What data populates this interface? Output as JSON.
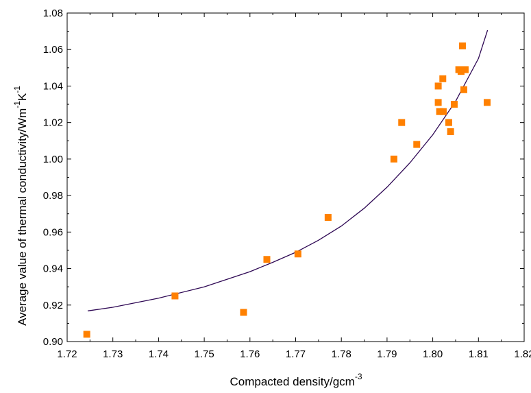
{
  "chart_data": {
    "type": "scatter",
    "title": "",
    "xlabel": "Compacted density/gcm",
    "xlabel_sup": "-3",
    "ylabel_parts": [
      "Average value of thermal conductivity/Wm",
      "-1",
      "K",
      "-1"
    ],
    "xlim": [
      1.72,
      1.82
    ],
    "ylim": [
      0.9,
      1.08
    ],
    "xticks": [
      "1.72",
      "1.73",
      "1.74",
      "1.75",
      "1.76",
      "1.77",
      "1.78",
      "1.79",
      "1.80",
      "1.81",
      "1.82"
    ],
    "yticks": [
      "0.90",
      "0.92",
      "0.94",
      "0.96",
      "0.98",
      "1.00",
      "1.02",
      "1.04",
      "1.06",
      "1.08"
    ],
    "grid": false,
    "legend": "none",
    "marker_color": "#ff8000",
    "curve_color": "#2e0854",
    "points": [
      {
        "x": 1.7243,
        "y": 0.904
      },
      {
        "x": 1.7436,
        "y": 0.925
      },
      {
        "x": 1.7586,
        "y": 0.916
      },
      {
        "x": 1.7637,
        "y": 0.945
      },
      {
        "x": 1.7705,
        "y": 0.948
      },
      {
        "x": 1.7771,
        "y": 0.968
      },
      {
        "x": 1.7915,
        "y": 1.0
      },
      {
        "x": 1.7932,
        "y": 1.02
      },
      {
        "x": 1.7965,
        "y": 1.008
      },
      {
        "x": 1.8012,
        "y": 1.04
      },
      {
        "x": 1.8012,
        "y": 1.031
      },
      {
        "x": 1.8015,
        "y": 1.026
      },
      {
        "x": 1.8022,
        "y": 1.044
      },
      {
        "x": 1.8023,
        "y": 1.026
      },
      {
        "x": 1.8035,
        "y": 1.02
      },
      {
        "x": 1.8039,
        "y": 1.015
      },
      {
        "x": 1.8047,
        "y": 1.03
      },
      {
        "x": 1.8057,
        "y": 1.049
      },
      {
        "x": 1.8062,
        "y": 1.048
      },
      {
        "x": 1.8065,
        "y": 1.062
      },
      {
        "x": 1.8068,
        "y": 1.038
      },
      {
        "x": 1.8071,
        "y": 1.049
      },
      {
        "x": 1.8119,
        "y": 1.031
      }
    ],
    "fit_curve": [
      {
        "x": 1.7245,
        "y": 0.9168
      },
      {
        "x": 1.73,
        "y": 0.9188
      },
      {
        "x": 1.74,
        "y": 0.9238
      },
      {
        "x": 1.75,
        "y": 0.93
      },
      {
        "x": 1.76,
        "y": 0.9383
      },
      {
        "x": 1.765,
        "y": 0.9434
      },
      {
        "x": 1.77,
        "y": 0.9489
      },
      {
        "x": 1.775,
        "y": 0.9555
      },
      {
        "x": 1.78,
        "y": 0.9633
      },
      {
        "x": 1.785,
        "y": 0.973
      },
      {
        "x": 1.79,
        "y": 0.9846
      },
      {
        "x": 1.795,
        "y": 0.9979
      },
      {
        "x": 1.8,
        "y": 1.0133
      },
      {
        "x": 1.805,
        "y": 1.0316
      },
      {
        "x": 1.81,
        "y": 1.0551
      },
      {
        "x": 1.812,
        "y": 1.0706
      }
    ]
  }
}
